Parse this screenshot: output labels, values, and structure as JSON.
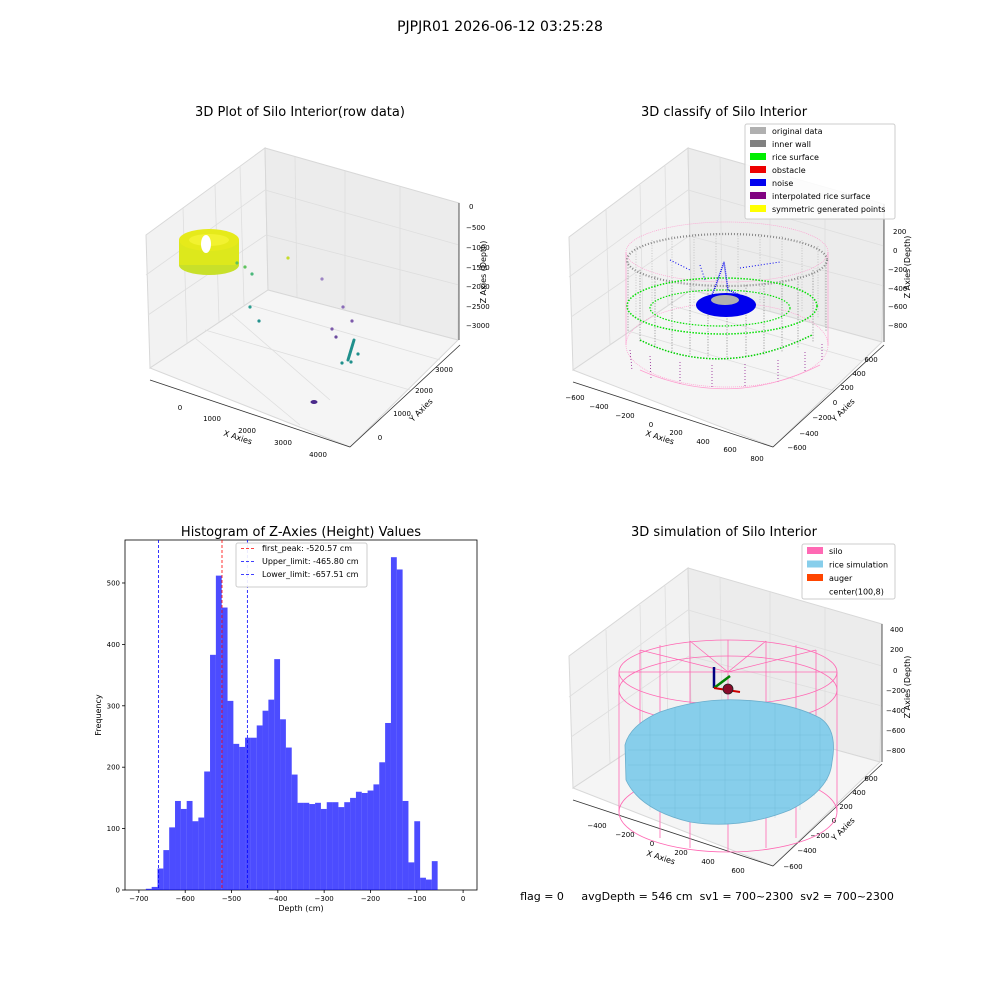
{
  "suptitle": "PJPJR01 2026-06-12 03:25:28",
  "panels": {
    "raw": {
      "title": "3D Plot of Silo Interior(row data)",
      "xlabel": "X Axies",
      "ylabel": "Y Axies",
      "zlabel": "Z Axies (Depth)",
      "xticks": [
        "0",
        "1000",
        "2000",
        "3000",
        "4000"
      ],
      "yticks": [
        "0",
        "1000",
        "2000",
        "3000"
      ],
      "zticks": [
        "0",
        "−500",
        "−1000",
        "−1500",
        "−2000",
        "−2500",
        "−3000"
      ]
    },
    "classify": {
      "title": "3D classify of Silo Interior",
      "xlabel": "X Axies",
      "ylabel": "Y Axies",
      "zlabel": "Z Axies (Depth)",
      "xticks": [
        "−600",
        "−400",
        "−200",
        "0",
        "200",
        "400",
        "600",
        "800"
      ],
      "yticks": [
        "−600",
        "−400",
        "−200",
        "0",
        "200",
        "400",
        "600"
      ],
      "zticks": [
        "200",
        "0",
        "−200",
        "−400",
        "−600",
        "−800"
      ],
      "legend": [
        {
          "label": "original data",
          "color": "#b0b0b0"
        },
        {
          "label": "inner wall",
          "color": "#808080"
        },
        {
          "label": "rice surface",
          "color": "#00ee00"
        },
        {
          "label": "obstacle",
          "color": "#ee0000"
        },
        {
          "label": "noise",
          "color": "#0000ee"
        },
        {
          "label": "interpolated rice surface",
          "color": "#800080"
        },
        {
          "label": "symmetric generated points",
          "color": "#ffff00"
        }
      ]
    },
    "simulation": {
      "title": "3D simulation of Silo Interior",
      "xlabel": "X Axies",
      "ylabel": "Y Axies",
      "zlabel": "Z Axies (Depth)",
      "xticks": [
        "−400",
        "−200",
        "0",
        "200",
        "400",
        "600"
      ],
      "yticks": [
        "−600",
        "−400",
        "−200",
        "0",
        "200",
        "400",
        "600"
      ],
      "zticks": [
        "400",
        "200",
        "0",
        "−200",
        "−400",
        "−600",
        "−800"
      ],
      "legend": [
        {
          "label": "silo",
          "color": "#ff69b4"
        },
        {
          "label": "rice simulation",
          "color": "#87ceeb"
        },
        {
          "label": "auger",
          "color": "#ff4500"
        },
        {
          "label": "center(100,8)",
          "color": ""
        }
      ]
    }
  },
  "status_text": "flag = 0     avgDepth = 546 cm  sv1 = 700~2300  sv2 = 700~2300",
  "chart_data": {
    "type": "bar",
    "title": "Histogram of Z-Axies (Height) Values",
    "xlabel": "Depth (cm)",
    "ylabel": "Frequency",
    "xlim": [
      -730,
      30
    ],
    "ylim": [
      0,
      570
    ],
    "xticks": [
      -700,
      -600,
      -500,
      -400,
      -300,
      -200,
      -100,
      0
    ],
    "xtick_labels": [
      "−700",
      "−600",
      "−500",
      "−400",
      "−300",
      "−200",
      "−100",
      "0"
    ],
    "yticks": [
      0,
      100,
      200,
      300,
      400,
      500
    ],
    "bin_start": -685,
    "bin_width": 12.6,
    "bar_color": "#0000ff",
    "values": [
      2,
      5,
      35,
      65,
      102,
      145,
      132,
      145,
      112,
      118,
      193,
      383,
      512,
      460,
      308,
      238,
      233,
      248,
      248,
      268,
      292,
      310,
      376,
      278,
      232,
      188,
      142,
      142,
      140,
      142,
      132,
      143,
      143,
      135,
      143,
      150,
      160,
      158,
      162,
      172,
      208,
      272,
      542,
      522,
      145,
      45,
      112,
      20,
      17,
      47
    ],
    "vlines": [
      {
        "value": -520.57,
        "color": "#ff0000",
        "label": "first_peak: -520.57 cm"
      },
      {
        "value": -465.8,
        "color": "#0000ff",
        "label": "Upper_limit: -465.80 cm"
      },
      {
        "value": -657.51,
        "color": "#0000ff",
        "label": "Lower_limit: -657.51 cm"
      }
    ],
    "legend_position": "upper-center"
  }
}
